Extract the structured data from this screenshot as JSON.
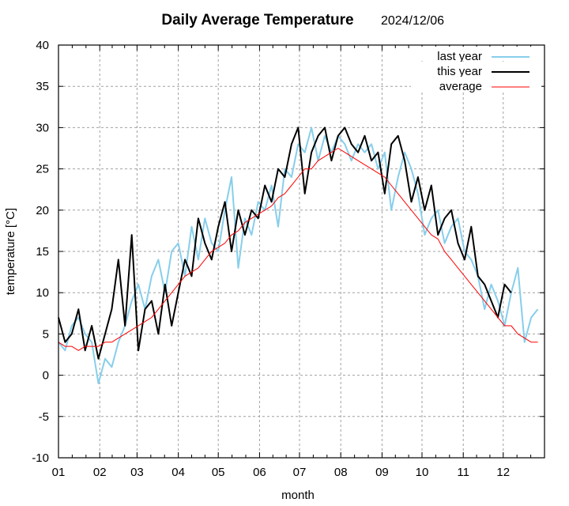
{
  "chart_data": {
    "type": "line",
    "title": "Daily Average Temperature",
    "subtitle": "2024/12/06",
    "xlabel": "month",
    "ylabel": "temperature  [°C]",
    "ylim": [
      -10,
      40
    ],
    "yticks": [
      "40",
      "35",
      "30",
      "25",
      "20",
      "15",
      "10",
      "5",
      "0",
      "-5",
      "-10"
    ],
    "xlim_days": [
      0,
      365
    ],
    "xticks": [
      "01",
      "02",
      "03",
      "04",
      "05",
      "06",
      "07",
      "08",
      "09",
      "10",
      "11",
      "12"
    ],
    "xtick_days": [
      0,
      31,
      59,
      90,
      120,
      151,
      181,
      212,
      243,
      273,
      304,
      334
    ],
    "grid": true,
    "legend_position": "top-right",
    "x_step_days": 5,
    "series": [
      {
        "name": "last year",
        "color": "#87ceeb",
        "values": [
          4,
          3,
          6,
          7,
          5,
          4,
          -1,
          2,
          1,
          4,
          6,
          9,
          11,
          8,
          12,
          14,
          10,
          15,
          16,
          12,
          18,
          14,
          19,
          16,
          15,
          20,
          24,
          13,
          19,
          17,
          21,
          20,
          23,
          18,
          25,
          24,
          28,
          27,
          30,
          26,
          29,
          27,
          29,
          28,
          26,
          28,
          27,
          28,
          25,
          27,
          20,
          24,
          27,
          25,
          22,
          17,
          19,
          20,
          16,
          18,
          19,
          15,
          14,
          12,
          8,
          11,
          9,
          6,
          10,
          13,
          4,
          7,
          8
        ]
      },
      {
        "name": "this year",
        "color": "#000000",
        "values": [
          7,
          4,
          5,
          8,
          3,
          6,
          2,
          5,
          8,
          14,
          6,
          17,
          3,
          8,
          9,
          5,
          11,
          6,
          10,
          14,
          12,
          19,
          16,
          14,
          18,
          21,
          15,
          20,
          17,
          20,
          19,
          23,
          21,
          25,
          24,
          28,
          30,
          22,
          27,
          29,
          30,
          26,
          29,
          30,
          28,
          27,
          29,
          26,
          27,
          22,
          28,
          29,
          26,
          21,
          24,
          20,
          23,
          17,
          19,
          20,
          16,
          14,
          18,
          12,
          11,
          9,
          7,
          11,
          10
        ]
      },
      {
        "name": "average",
        "color": "#ff0000",
        "values": [
          4,
          3.5,
          3.5,
          3,
          3.5,
          3.5,
          3.5,
          4,
          4,
          4.5,
          5,
          5.5,
          6,
          6.5,
          7,
          8,
          9,
          10,
          11,
          12,
          12.5,
          13,
          14,
          15,
          15.5,
          16,
          17,
          17.5,
          18.5,
          19,
          19.5,
          20,
          20.5,
          21.5,
          22,
          23,
          24,
          25,
          25,
          26,
          26.5,
          27,
          27.5,
          27,
          26.5,
          26,
          25.5,
          25,
          24.5,
          24,
          23,
          22,
          21,
          20,
          19,
          18,
          17,
          16.5,
          15,
          14,
          13,
          12,
          11,
          10,
          9,
          8,
          7,
          6,
          6,
          5,
          4.5,
          4,
          4
        ]
      }
    ]
  }
}
